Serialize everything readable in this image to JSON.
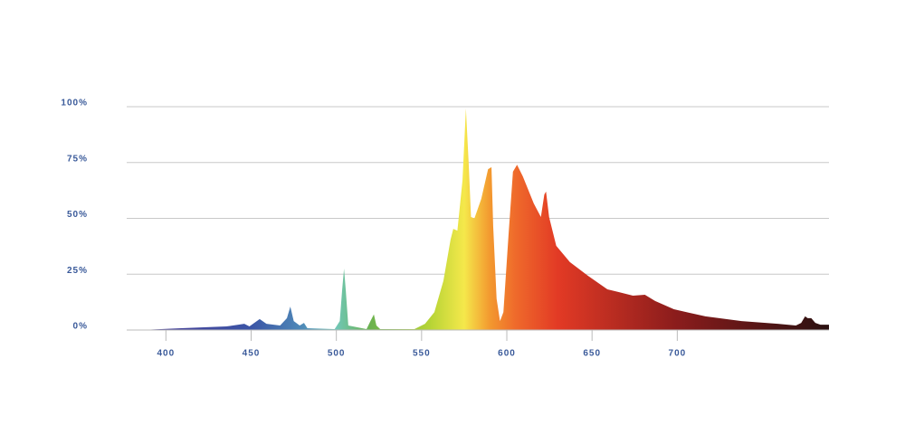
{
  "chart_data": {
    "type": "area",
    "x": [
      385,
      409,
      435.5,
      446,
      449,
      455,
      459,
      467,
      471,
      473,
      475,
      478.5,
      481,
      483,
      499,
      502,
      503.4,
      504.5,
      505.5,
      507,
      517.7,
      520,
      522,
      523.5,
      525.7,
      545.8,
      552,
      557.5,
      562.8,
      567,
      568.6,
      571,
      574,
      576,
      577.6,
      579,
      581,
      585,
      589,
      591,
      592,
      594,
      596,
      598,
      601,
      603.6,
      606,
      609.4,
      615.8,
      620,
      622,
      623,
      624.8,
      629,
      637,
      647.6,
      659,
      665.6,
      674,
      681,
      687,
      698,
      716.5,
      737.7,
      759,
      769.6,
      772.7,
      775,
      776.5,
      778.6,
      781,
      784,
      789
    ],
    "values": [
      0,
      0.8,
      1.6,
      2.8,
      1.6,
      4.9,
      2.8,
      2,
      5.3,
      10.5,
      4,
      2,
      3.2,
      0.8,
      0.4,
      4,
      18,
      27.5,
      18,
      2,
      0.4,
      4,
      7,
      2,
      0.4,
      0.4,
      2.8,
      8,
      22,
      40.5,
      45.3,
      44.5,
      67,
      99.2,
      75,
      50.6,
      50,
      58.7,
      72,
      72.9,
      46.5,
      14,
      4,
      8,
      42.5,
      70.9,
      74,
      68.8,
      56.7,
      50.6,
      60.7,
      62,
      50.6,
      37.7,
      30.4,
      24.3,
      18.2,
      17,
      15.4,
      15.8,
      13,
      9.3,
      6.1,
      4,
      2.8,
      2,
      3.2,
      6.1,
      5.3,
      5.3,
      3.2,
      2.4,
      2.4
    ],
    "xlim": [
      377,
      789
    ],
    "xticks": [
      400,
      450,
      500,
      550,
      600,
      650,
      700
    ],
    "ylim": [
      0,
      100
    ],
    "yticks": [
      {
        "value": 0,
        "label": "0%"
      },
      {
        "value": 25,
        "label": "25%"
      },
      {
        "value": 50,
        "label": "50%"
      },
      {
        "value": 75,
        "label": "75%"
      },
      {
        "value": 100,
        "label": "100%"
      }
    ],
    "grid": true,
    "gradient": [
      {
        "at": 385,
        "color": "#4a3a94"
      },
      {
        "at": 450,
        "color": "#3b55a6"
      },
      {
        "at": 480,
        "color": "#4f8ab8"
      },
      {
        "at": 500,
        "color": "#70c7b6"
      },
      {
        "at": 520,
        "color": "#6bb24e"
      },
      {
        "at": 555,
        "color": "#b6d435"
      },
      {
        "at": 575,
        "color": "#f5e84b"
      },
      {
        "at": 590,
        "color": "#f3992f"
      },
      {
        "at": 605,
        "color": "#ef6a2b"
      },
      {
        "at": 630,
        "color": "#e23a25"
      },
      {
        "at": 700,
        "color": "#8a1c1c"
      },
      {
        "at": 789,
        "color": "#2a1010"
      }
    ]
  }
}
